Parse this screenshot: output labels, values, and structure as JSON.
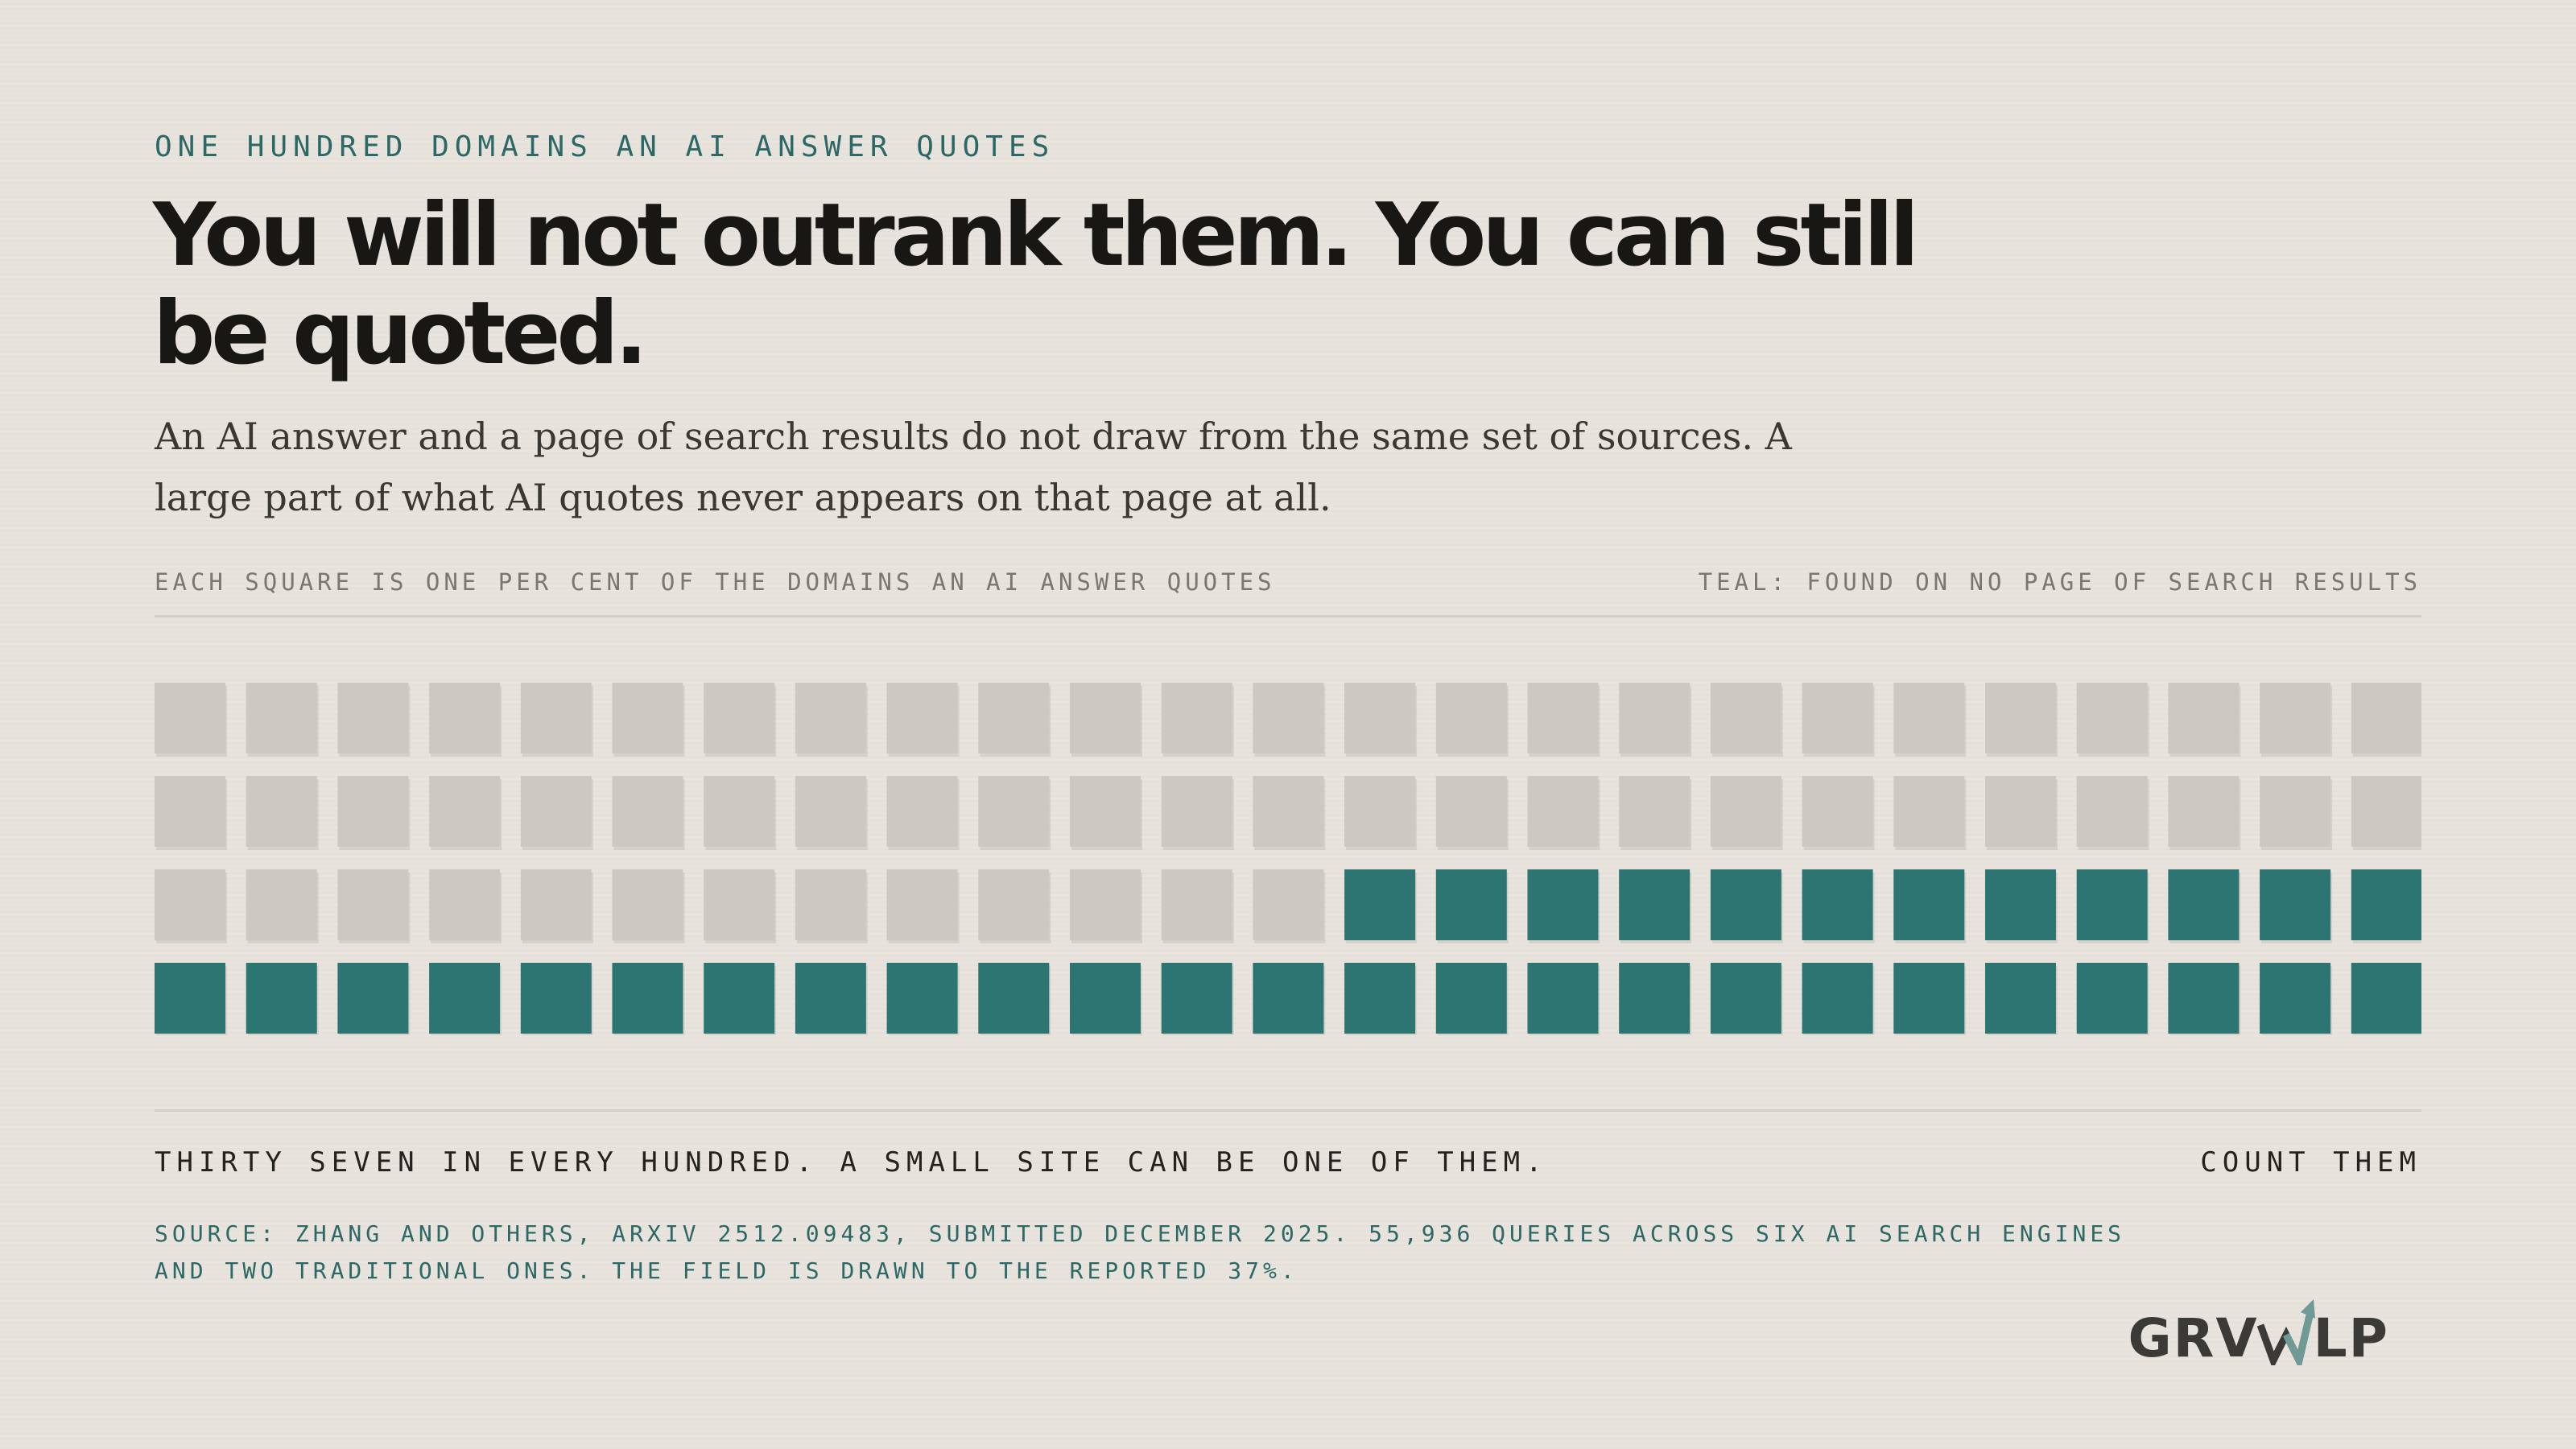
{
  "header": {
    "eyebrow": "ONE HUNDRED DOMAINS AN AI ANSWER QUOTES",
    "title": "You will not outrank them. You can still be quoted.",
    "subtitle": "An AI answer and a page of search results do not draw from the same set of sources. A large part of what AI quotes never appears on that page at all."
  },
  "legend": {
    "left": "EACH SQUARE IS ONE PER CENT OF THE DOMAINS AN AI ANSWER QUOTES",
    "right": "TEAL: FOUND ON NO PAGE OF SEARCH RESULTS"
  },
  "chart_data": {
    "type": "waffle",
    "total": 100,
    "rows": 4,
    "columns": 25,
    "highlighted": 37,
    "highlight_color": "#2c7572",
    "base_color": "#cdc9c2"
  },
  "footer": {
    "caption": "THIRTY SEVEN IN EVERY HUNDRED. A SMALL SITE CAN BE ONE OF THEM.",
    "cta": "COUNT THEM",
    "source": "SOURCE: ZHANG AND OTHERS, ARXIV 2512.09483, SUBMITTED DECEMBER 2025. 55,936 QUERIES ACROSS SIX AI SEARCH ENGINES AND TWO TRADITIONAL ONES. THE FIELD IS DRAWN TO THE REPORTED 37%."
  },
  "logo": {
    "left": "GRV",
    "right": "LP",
    "icon": "rising-arrow-icon",
    "accent": "#6f9a96"
  }
}
